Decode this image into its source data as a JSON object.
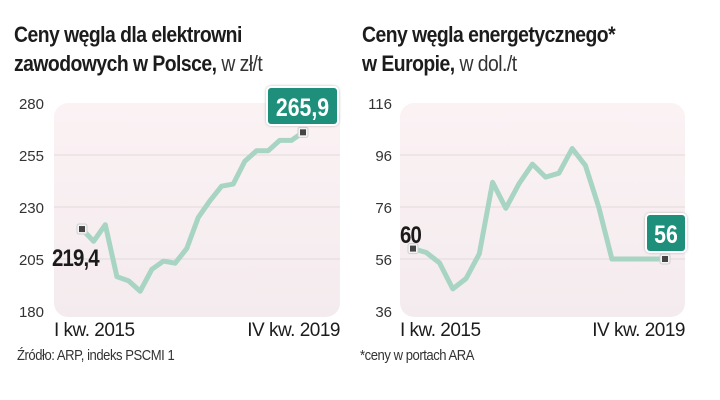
{
  "colors": {
    "line": "#a7d4c3",
    "badge": "#1e8f7a",
    "badge_text": "#ffffff",
    "marker": "#444444",
    "plot_bg_top": "#fbf2f4",
    "plot_bg_bottom": "#f4ebee",
    "grid": "#e3d9dc"
  },
  "chart_data": [
    {
      "type": "line",
      "title_bold": "Ceny węgla dla elektrowni",
      "title_bold_line2": "zawodowych w Polsce,",
      "title_unit": " w zł/t",
      "yticks": [
        280,
        255,
        230,
        205,
        180
      ],
      "ylim": [
        180,
        280
      ],
      "x_labels": [
        "I kw. 2015",
        "IV kw. 2019"
      ],
      "x": [
        "I 2015",
        "II 2015",
        "III 2015",
        "IV 2015",
        "I 2016",
        "II 2016",
        "III 2016",
        "IV 2016",
        "I 2017",
        "II 2017",
        "III 2017",
        "IV 2017",
        "I 2018",
        "II 2018",
        "III 2018",
        "IV 2018",
        "I 2019",
        "II 2019",
        "III 2019",
        "IV 2019"
      ],
      "values": [
        219.4,
        213.5,
        221.5,
        196.5,
        194.5,
        189.5,
        200,
        204,
        203,
        210,
        225,
        233,
        240,
        241,
        252,
        257,
        257,
        262,
        262,
        265.9
      ],
      "start_label": "219,4",
      "end_label": "265,9",
      "footnote": "Źródło: ARP, indeks PSCMI 1"
    },
    {
      "type": "line",
      "title_bold": "Ceny węgla energetycznego*",
      "title_bold_line2": "w Europie,",
      "title_unit": " w dol./t",
      "yticks": [
        116,
        96,
        76,
        56,
        36
      ],
      "ylim": [
        36,
        116
      ],
      "x_labels": [
        "I kw. 2015",
        "IV kw. 2019"
      ],
      "x": [
        "I 2015",
        "II 2015",
        "III 2015",
        "IV 2015",
        "I 2016",
        "II 2016",
        "III 2016",
        "IV 2016",
        "I 2017",
        "II 2017",
        "III 2017",
        "IV 2017",
        "I 2018",
        "II 2018",
        "III 2018",
        "IV 2018",
        "I 2019",
        "II 2019",
        "III 2019",
        "IV 2019"
      ],
      "values": [
        60,
        58.5,
        54.5,
        44.5,
        48.5,
        58,
        85.5,
        75.5,
        85,
        92.5,
        87.5,
        89,
        98.5,
        92,
        76,
        56,
        56,
        56,
        56,
        56
      ],
      "start_label": "60",
      "end_label": "56",
      "footnote": "*ceny w portach ARA"
    }
  ]
}
